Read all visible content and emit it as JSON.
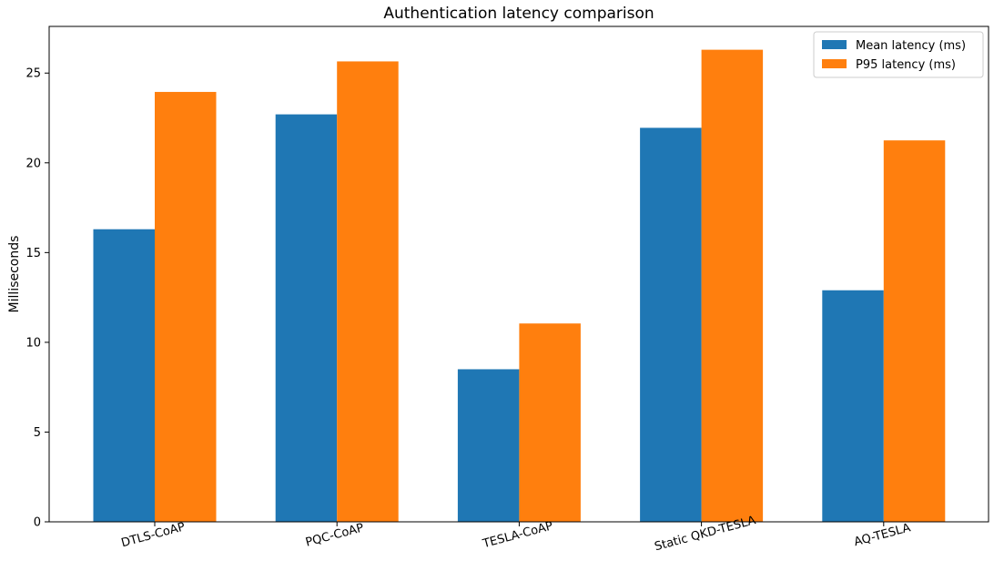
{
  "chart_data": {
    "type": "bar",
    "title": "Authentication latency comparison",
    "xlabel": "",
    "ylabel": "Milliseconds",
    "categories": [
      "DTLS-CoAP",
      "PQC-CoAP",
      "TESLA-CoAP",
      "Static QKD-TESLA",
      "AQ-TESLA"
    ],
    "series": [
      {
        "name": "Mean latency (ms)",
        "color": "#1f77b4",
        "values": [
          16.3,
          22.7,
          8.5,
          21.95,
          12.9
        ]
      },
      {
        "name": "P95 latency (ms)",
        "color": "#ff7f0e",
        "values": [
          23.95,
          25.65,
          11.05,
          26.3,
          21.25
        ]
      }
    ],
    "ylim": [
      0,
      27.6
    ],
    "yticks": [
      0,
      5,
      10,
      15,
      20,
      25
    ],
    "grid": false,
    "legend_position": "top-right",
    "xtick_rotation": -15
  }
}
